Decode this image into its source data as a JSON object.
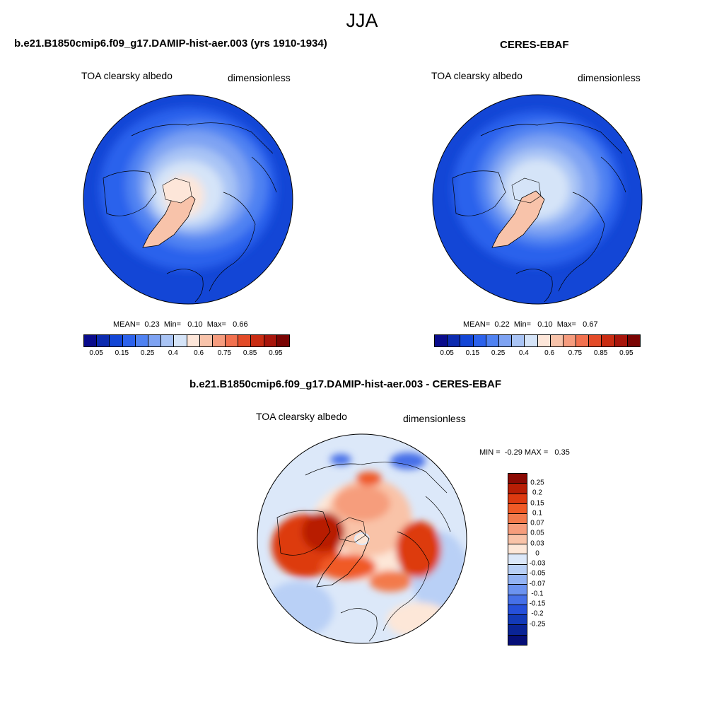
{
  "season": "JJA",
  "panel_model": {
    "title": "b.e21.B1850cmip6.f09_g17.DAMIP-hist-aer.003 (yrs 1910-1934)",
    "variable": "TOA clearsky albedo",
    "units": "dimensionless",
    "mean_label": "MEAN=",
    "mean": "0.23",
    "min_label": "Min=",
    "min": "0.10",
    "max_label": "Max=",
    "max": "0.66"
  },
  "panel_obs": {
    "title": "CERES-EBAF",
    "variable": "TOA clearsky albedo",
    "units": "dimensionless",
    "mean_label": "MEAN=",
    "mean": "0.22",
    "min_label": "Min=",
    "min": "0.10",
    "max_label": "Max=",
    "max": "0.67"
  },
  "panel_diff": {
    "title": "b.e21.B1850cmip6.f09_g17.DAMIP-hist-aer.003 - CERES-EBAF",
    "variable": "TOA clearsky albedo",
    "units": "dimensionless",
    "min_label": "MIN =",
    "min": "-0.29",
    "max_label": "MAX =",
    "max": "0.35"
  },
  "colorbar_abs": {
    "colors": [
      "#0a0c8c",
      "#0c2bb0",
      "#1346d6",
      "#2c62ec",
      "#4f82f2",
      "#7ea3f3",
      "#a9c4f5",
      "#d5e4f8",
      "#fde6d9",
      "#f8c3aa",
      "#f69c7e",
      "#f2714f",
      "#e34b28",
      "#c92c12",
      "#a8150b",
      "#7a0403"
    ],
    "ticks": [
      "0.05",
      "0.15",
      "0.25",
      "0.4",
      "0.6",
      "0.75",
      "0.85",
      "0.95"
    ]
  },
  "colorbar_diff": {
    "colors": [
      "#8b0a03",
      "#b81e05",
      "#dd3a10",
      "#f05a26",
      "#f37a4c",
      "#f69d7c",
      "#f9c3a8",
      "#fde7d8",
      "#dce8f9",
      "#b9d0f6",
      "#93b3f4",
      "#6c93f0",
      "#4670e8",
      "#2650da",
      "#133ab8",
      "#0a2496",
      "#060f78"
    ],
    "ticks": [
      "0.25",
      "0.2",
      "0.15",
      "0.1",
      "0.07",
      "0.05",
      "0.03",
      "0",
      "-0.03",
      "-0.05",
      "-0.07",
      "-0.1",
      "-0.15",
      "-0.2",
      "-0.25"
    ]
  }
}
